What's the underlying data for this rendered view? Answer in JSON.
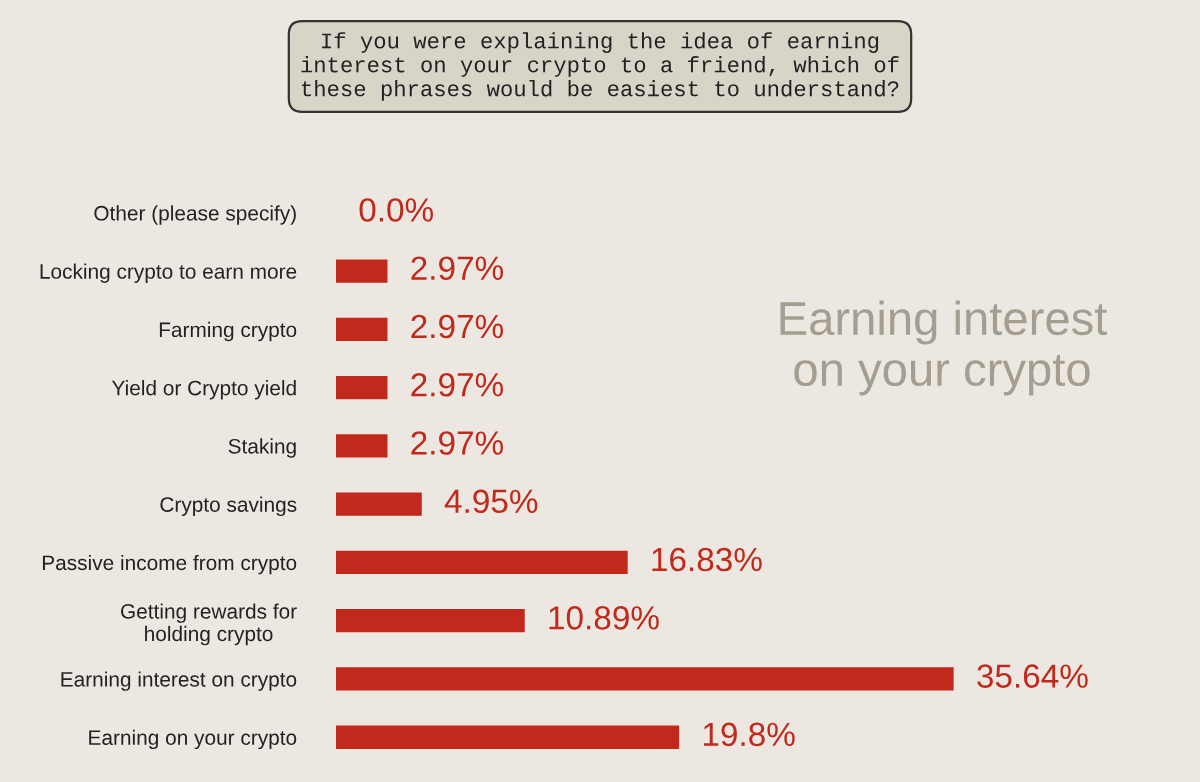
{
  "chart_data": {
    "type": "bar",
    "orientation": "horizontal",
    "title": "If you were explaining the idea of earning\ninterest on your crypto to a friend, which of\nthese phrases would be easiest to understand?",
    "categories": [
      "Other (please specify)",
      "Locking crypto to earn more",
      "Farming crypto",
      "Yield or Crypto yield",
      "Staking",
      "Crypto savings",
      "Passive income from crypto",
      "Getting rewards for\nholding crypto",
      "Earning interest on crypto",
      "Earning on your crypto"
    ],
    "values": [
      0.0,
      2.97,
      2.97,
      2.97,
      2.97,
      4.95,
      16.83,
      10.89,
      35.64,
      19.8
    ],
    "value_labels": [
      "0.0%",
      "2.97%",
      "2.97%",
      "2.97%",
      "2.97%",
      "4.95%",
      "16.83%",
      "10.89%",
      "35.64%",
      "19.8%"
    ],
    "color": "#c0291c",
    "annotations": [
      "Earning interest\non your crypto"
    ],
    "grid": false,
    "legend": false
  }
}
